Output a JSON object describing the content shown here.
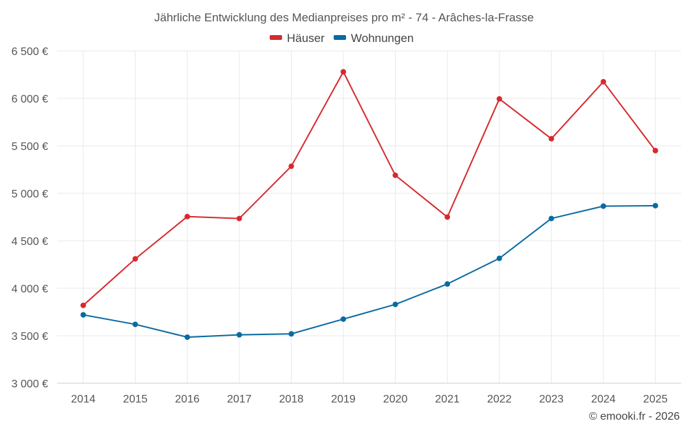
{
  "credit": "© emooki.fr - 2026",
  "chart_data": {
    "type": "line",
    "title": "Jährliche Entwicklung des Medianpreises pro m² - 74 - Arâches-la-Frasse",
    "xlabel": "",
    "ylabel": "",
    "categories": [
      "2014",
      "2015",
      "2016",
      "2017",
      "2018",
      "2019",
      "2020",
      "2021",
      "2022",
      "2023",
      "2024",
      "2025"
    ],
    "ylim": [
      3000,
      6500
    ],
    "yticks": [
      3000,
      3500,
      4000,
      4500,
      5000,
      5500,
      6000,
      6500
    ],
    "ytick_labels": [
      "3 000 €",
      "3 500 €",
      "4 000 €",
      "4 500 €",
      "5 000 €",
      "5 500 €",
      "6 000 €",
      "6 500 €"
    ],
    "legend_position": "top-center",
    "grid": true,
    "series": [
      {
        "name": "Häuser",
        "color": "#d62a2f",
        "values": [
          3820,
          4310,
          4755,
          4735,
          5285,
          6280,
          5190,
          4750,
          5995,
          5575,
          6175,
          5450
        ]
      },
      {
        "name": "Wohnungen",
        "color": "#0a6aa1",
        "values": [
          3720,
          3620,
          3485,
          3510,
          3520,
          3675,
          3830,
          4045,
          4315,
          4735,
          4865,
          4870
        ]
      }
    ]
  }
}
